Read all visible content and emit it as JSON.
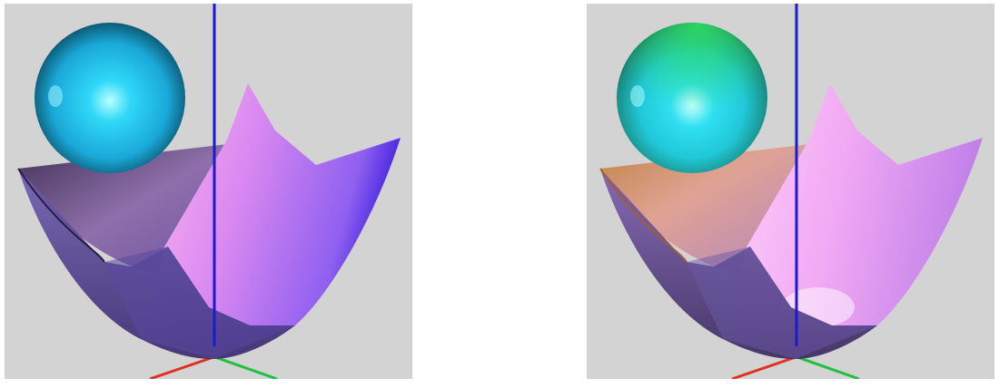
{
  "scene": {
    "background": "#d3d3d3",
    "page_background": "#ffffff",
    "axis_colors": {
      "x": "#e03020",
      "y": "#20c040",
      "z": "#1a1ad0"
    },
    "views": [
      {
        "id": "left",
        "sphere_colors": {
          "highlight": "#b8ffff",
          "mid": "#22c8ee",
          "edge": "#0a4a60"
        },
        "surface_colors": {
          "front_light": "#ffb8f0",
          "front_mid": "#c070f0",
          "front_dark": "#4020e0",
          "back": "#6a4aa0",
          "rim": "#6b3b70"
        }
      },
      {
        "id": "right",
        "sphere_colors": {
          "highlight": "#b8ffff",
          "mid": "#20d8e8",
          "edge": "#1a7060",
          "top_tint": "#30e060"
        },
        "surface_colors": {
          "front_light": "#ffd0f8",
          "front_mid": "#d890f0",
          "front_dark": "#a060e0",
          "back": "#7050a8",
          "rim": "#c08040"
        }
      }
    ]
  }
}
